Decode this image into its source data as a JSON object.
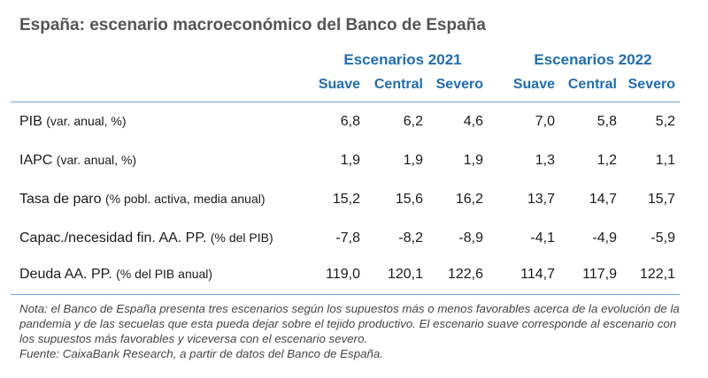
{
  "header": {
    "title": "España: escenario macroeconómico del Banco de España"
  },
  "table": {
    "groups": [
      "Escenarios 2021",
      "Escenarios 2022"
    ],
    "columns": [
      "Suave",
      "Central",
      "Severo",
      "Suave",
      "Central",
      "Severo"
    ],
    "rows": [
      {
        "name": "PIB",
        "unit": "(var. anual, %)",
        "values": [
          "6,8",
          "6,2",
          "4,6",
          "7,0",
          "5,8",
          "5,2"
        ]
      },
      {
        "name": "IAPC",
        "unit": "(var. anual, %)",
        "values": [
          "1,9",
          "1,9",
          "1,9",
          "1,3",
          "1,2",
          "1,1"
        ]
      },
      {
        "name": "Tasa de paro",
        "unit": "(% pobl. activa, media anual)",
        "values": [
          "15,2",
          "15,6",
          "16,2",
          "13,7",
          "14,7",
          "15,7"
        ]
      },
      {
        "name": "Capac./necesidad fin. AA. PP.",
        "unit": "(% del PIB)",
        "values": [
          "-7,8",
          "-8,2",
          "-8,9",
          "-4,1",
          "-4,9",
          "-5,9"
        ]
      },
      {
        "name": "Deuda AA. PP.",
        "unit": "(% del PIB anual)",
        "values": [
          "119,0",
          "120,1",
          "122,6",
          "114,7",
          "117,9",
          "122,1"
        ]
      }
    ]
  },
  "footer": {
    "note": "Nota: el Banco de España presenta tres escenarios según los supuestos más o menos favorables acerca de la evolución de la pandemia y de las secuelas que esta pueda dejar sobre el tejido productivo. El escenario suave corresponde al escenario con los supuestos más favorables y viceversa con el escenario severo.",
    "source": "Fuente: CaixaBank Research, a partir de datos del Banco de España."
  }
}
